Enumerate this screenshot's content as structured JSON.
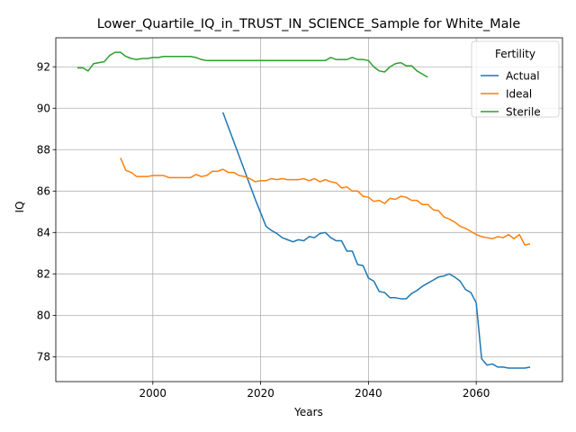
{
  "chart_data": {
    "type": "line",
    "title": "Lower_Quartile_IQ_in_TRUST_IN_SCIENCE_Sample for White_Male",
    "xlabel": "Years",
    "ylabel": "IQ",
    "xlim": [
      1982,
      2076
    ],
    "ylim": [
      76.8,
      93.4
    ],
    "xticks": [
      2000,
      2020,
      2040,
      2060
    ],
    "yticks": [
      78,
      80,
      82,
      84,
      86,
      88,
      90,
      92
    ],
    "grid": true,
    "legend": {
      "title": "Fertility",
      "position": "upper right"
    },
    "series": [
      {
        "name": "Actual",
        "color": "#1f77b4",
        "x": [
          2013,
          2014,
          2015,
          2016,
          2017,
          2018,
          2019,
          2020,
          2021,
          2022,
          2023,
          2024,
          2025,
          2026,
          2027,
          2028,
          2029,
          2030,
          2031,
          2032,
          2033,
          2034,
          2035,
          2036,
          2037,
          2038,
          2039,
          2040,
          2041,
          2042,
          2043,
          2044,
          2045,
          2046,
          2047,
          2048,
          2049,
          2050,
          2051,
          2052,
          2053,
          2054,
          2055,
          2056,
          2057,
          2058,
          2059,
          2060,
          2061,
          2062,
          2063,
          2064,
          2065,
          2066,
          2067,
          2068,
          2069,
          2070
        ],
        "y": [
          89.8,
          89.1,
          88.4,
          87.7,
          87.0,
          86.3,
          85.6,
          84.95,
          84.3,
          84.1,
          83.95,
          83.75,
          83.65,
          83.55,
          83.65,
          83.6,
          83.8,
          83.75,
          83.95,
          84.0,
          83.75,
          83.6,
          83.6,
          83.1,
          83.1,
          82.45,
          82.4,
          81.8,
          81.65,
          81.15,
          81.1,
          80.85,
          80.85,
          80.8,
          80.8,
          81.05,
          81.2,
          81.4,
          81.55,
          81.7,
          81.85,
          81.9,
          82.0,
          81.85,
          81.65,
          81.25,
          81.1,
          80.6,
          77.9,
          77.6,
          77.65,
          77.5,
          77.5,
          77.45,
          77.45,
          77.45,
          77.45,
          77.5
        ]
      },
      {
        "name": "Ideal",
        "color": "#ff7f0e",
        "x": [
          1994,
          1995,
          1996,
          1997,
          1998,
          1999,
          2000,
          2001,
          2002,
          2003,
          2004,
          2005,
          2006,
          2007,
          2008,
          2009,
          2010,
          2011,
          2012,
          2013,
          2014,
          2015,
          2016,
          2017,
          2018,
          2019,
          2020,
          2021,
          2022,
          2023,
          2024,
          2025,
          2026,
          2027,
          2028,
          2029,
          2030,
          2031,
          2032,
          2033,
          2034,
          2035,
          2036,
          2037,
          2038,
          2039,
          2040,
          2041,
          2042,
          2043,
          2044,
          2045,
          2046,
          2047,
          2048,
          2049,
          2050,
          2051,
          2052,
          2053,
          2054,
          2055,
          2056,
          2057,
          2058,
          2059,
          2060,
          2061,
          2062,
          2063,
          2064,
          2065,
          2066,
          2067,
          2068,
          2069,
          2070
        ],
        "y": [
          87.6,
          87.0,
          86.9,
          86.7,
          86.7,
          86.7,
          86.75,
          86.75,
          86.75,
          86.65,
          86.65,
          86.65,
          86.65,
          86.65,
          86.8,
          86.7,
          86.75,
          86.95,
          86.95,
          87.05,
          86.9,
          86.9,
          86.75,
          86.7,
          86.6,
          86.45,
          86.5,
          86.5,
          86.6,
          86.55,
          86.6,
          86.55,
          86.55,
          86.55,
          86.6,
          86.5,
          86.6,
          86.45,
          86.55,
          86.45,
          86.4,
          86.15,
          86.2,
          86.0,
          86.0,
          85.75,
          85.7,
          85.5,
          85.55,
          85.4,
          85.65,
          85.6,
          85.75,
          85.7,
          85.55,
          85.55,
          85.35,
          85.35,
          85.1,
          85.05,
          84.75,
          84.65,
          84.5,
          84.3,
          84.2,
          84.05,
          83.9,
          83.8,
          83.75,
          83.7,
          83.8,
          83.75,
          83.9,
          83.7,
          83.9,
          83.4,
          83.45
        ]
      },
      {
        "name": "Sterile",
        "color": "#2ca02c",
        "x": [
          1986,
          1987,
          1988,
          1989,
          1990,
          1991,
          1992,
          1993,
          1994,
          1995,
          1996,
          1997,
          1998,
          1999,
          2000,
          2001,
          2002,
          2003,
          2004,
          2005,
          2006,
          2007,
          2008,
          2009,
          2010,
          2011,
          2012,
          2013,
          2014,
          2015,
          2016,
          2017,
          2018,
          2019,
          2020,
          2021,
          2022,
          2023,
          2024,
          2025,
          2026,
          2027,
          2028,
          2029,
          2030,
          2031,
          2032,
          2033,
          2034,
          2035,
          2036,
          2037,
          2038,
          2039,
          2040,
          2041,
          2042,
          2043,
          2044,
          2045,
          2046,
          2047,
          2048,
          2049,
          2050,
          2051
        ],
        "y": [
          91.95,
          91.95,
          91.8,
          92.15,
          92.2,
          92.25,
          92.55,
          92.7,
          92.7,
          92.5,
          92.4,
          92.35,
          92.4,
          92.4,
          92.45,
          92.45,
          92.5,
          92.5,
          92.5,
          92.5,
          92.5,
          92.5,
          92.45,
          92.35,
          92.3,
          92.3,
          92.3,
          92.3,
          92.3,
          92.3,
          92.3,
          92.3,
          92.3,
          92.3,
          92.3,
          92.3,
          92.3,
          92.3,
          92.3,
          92.3,
          92.3,
          92.3,
          92.3,
          92.3,
          92.3,
          92.3,
          92.3,
          92.45,
          92.35,
          92.35,
          92.35,
          92.45,
          92.35,
          92.35,
          92.3,
          92.0,
          91.8,
          91.75,
          92.0,
          92.15,
          92.2,
          92.05,
          92.05,
          91.8,
          91.65,
          91.5
        ]
      }
    ]
  }
}
